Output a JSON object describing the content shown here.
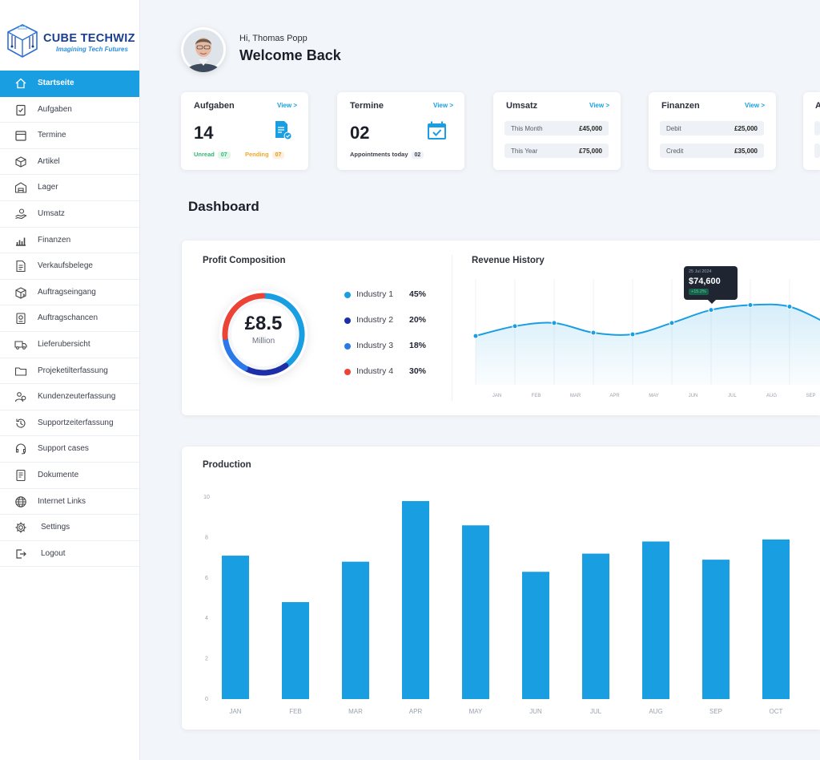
{
  "brand": {
    "name": "CUBE TECHWIZ",
    "tagline": "Imagining Tech Futures"
  },
  "sidebar": {
    "items": [
      {
        "label": "Startseite",
        "icon": "home-icon",
        "active": true
      },
      {
        "label": "Aufgaben",
        "icon": "clipboard-icon"
      },
      {
        "label": "Termine",
        "icon": "calendar-icon"
      },
      {
        "label": "Artikel",
        "icon": "box-icon"
      },
      {
        "label": "Lager",
        "icon": "warehouse-icon"
      },
      {
        "label": "Umsatz",
        "icon": "hand-coin-icon"
      },
      {
        "label": "Finanzen",
        "icon": "bar-chart-icon"
      },
      {
        "label": "Verkaufsbelege",
        "icon": "document-icon"
      },
      {
        "label": "Auftragseingang",
        "icon": "inbox-box-icon"
      },
      {
        "label": "Auftragschancen",
        "icon": "opportunity-icon"
      },
      {
        "label": "Lieferubersicht",
        "icon": "truck-icon"
      },
      {
        "label": "Projeketilterfassung",
        "icon": "folder-icon"
      },
      {
        "label": "Kundenzeuterfassung",
        "icon": "users-icon"
      },
      {
        "label": "Supportzeiterfassung",
        "icon": "history-icon"
      },
      {
        "label": "Support cases",
        "icon": "headset-icon"
      },
      {
        "label": "Dokumente",
        "icon": "file-icon"
      },
      {
        "label": "Internet Links",
        "icon": "globe-icon"
      },
      {
        "label": "Settings",
        "icon": "gear-icon"
      },
      {
        "label": "Logout",
        "icon": "logout-icon"
      }
    ]
  },
  "header": {
    "greeting": "Hi, Thomas Popp",
    "title": "Welcome Back"
  },
  "cards": {
    "aufgaben": {
      "title": "Aufgaben",
      "view": "View >",
      "value": "14",
      "unread_label": "Unread",
      "unread_count": "07",
      "pending_label": "Pending",
      "pending_count": "07"
    },
    "termine": {
      "title": "Termine",
      "view": "View >",
      "value": "02",
      "appt_label": "Appointments today",
      "appt_count": "02"
    },
    "umsatz": {
      "title": "Umsatz",
      "view": "View >",
      "rows": [
        {
          "label": "This Month",
          "value": "£45,000"
        },
        {
          "label": "This Year",
          "value": "£75,000"
        }
      ]
    },
    "finanzen": {
      "title": "Finanzen",
      "view": "View >",
      "rows": [
        {
          "label": "Debit",
          "value": "£25,000"
        },
        {
          "label": "Credit",
          "value": "£35,000"
        }
      ]
    },
    "partial": {
      "title": "A"
    }
  },
  "dashboard": {
    "title": "Dashboard"
  },
  "colors": {
    "accent": "#1a9ee2",
    "industry1": "#1a9ee2",
    "industry2": "#1c2fa8",
    "industry3": "#2b79e8",
    "industry4": "#ec4337"
  },
  "chart_data": [
    {
      "type": "pie",
      "title": "Profit Composition",
      "center_value": "£8.5",
      "center_unit": "Million",
      "categories": [
        "Industry 1",
        "Industry 2",
        "Industry 3",
        "Industry 4"
      ],
      "values": [
        45,
        20,
        18,
        30
      ],
      "labels": [
        "45%",
        "20%",
        "18%",
        "30%"
      ]
    },
    {
      "type": "line",
      "title": "Revenue History",
      "categories": [
        "JAN",
        "FEB",
        "MAR",
        "APR",
        "MAY",
        "JUN",
        "JUL",
        "AUG",
        "SEP"
      ],
      "values": [
        60,
        66,
        68,
        62,
        61,
        68,
        76,
        79,
        78
      ],
      "ylim": [
        30,
        95
      ],
      "tooltip": {
        "date": "25 Jul 2024",
        "value": "$74,600",
        "change": "+15.2%"
      }
    },
    {
      "type": "bar",
      "title": "Production",
      "categories": [
        "JAN",
        "FEB",
        "MAR",
        "APR",
        "MAY",
        "JUN",
        "JUL",
        "AUG",
        "SEP",
        "OCT"
      ],
      "values": [
        7.1,
        4.8,
        6.8,
        9.8,
        8.6,
        6.3,
        7.2,
        7.8,
        6.9,
        7.9
      ],
      "yticks": [
        "0",
        "2",
        "4",
        "6",
        "8",
        "10"
      ],
      "ylim": [
        0,
        10
      ]
    }
  ]
}
